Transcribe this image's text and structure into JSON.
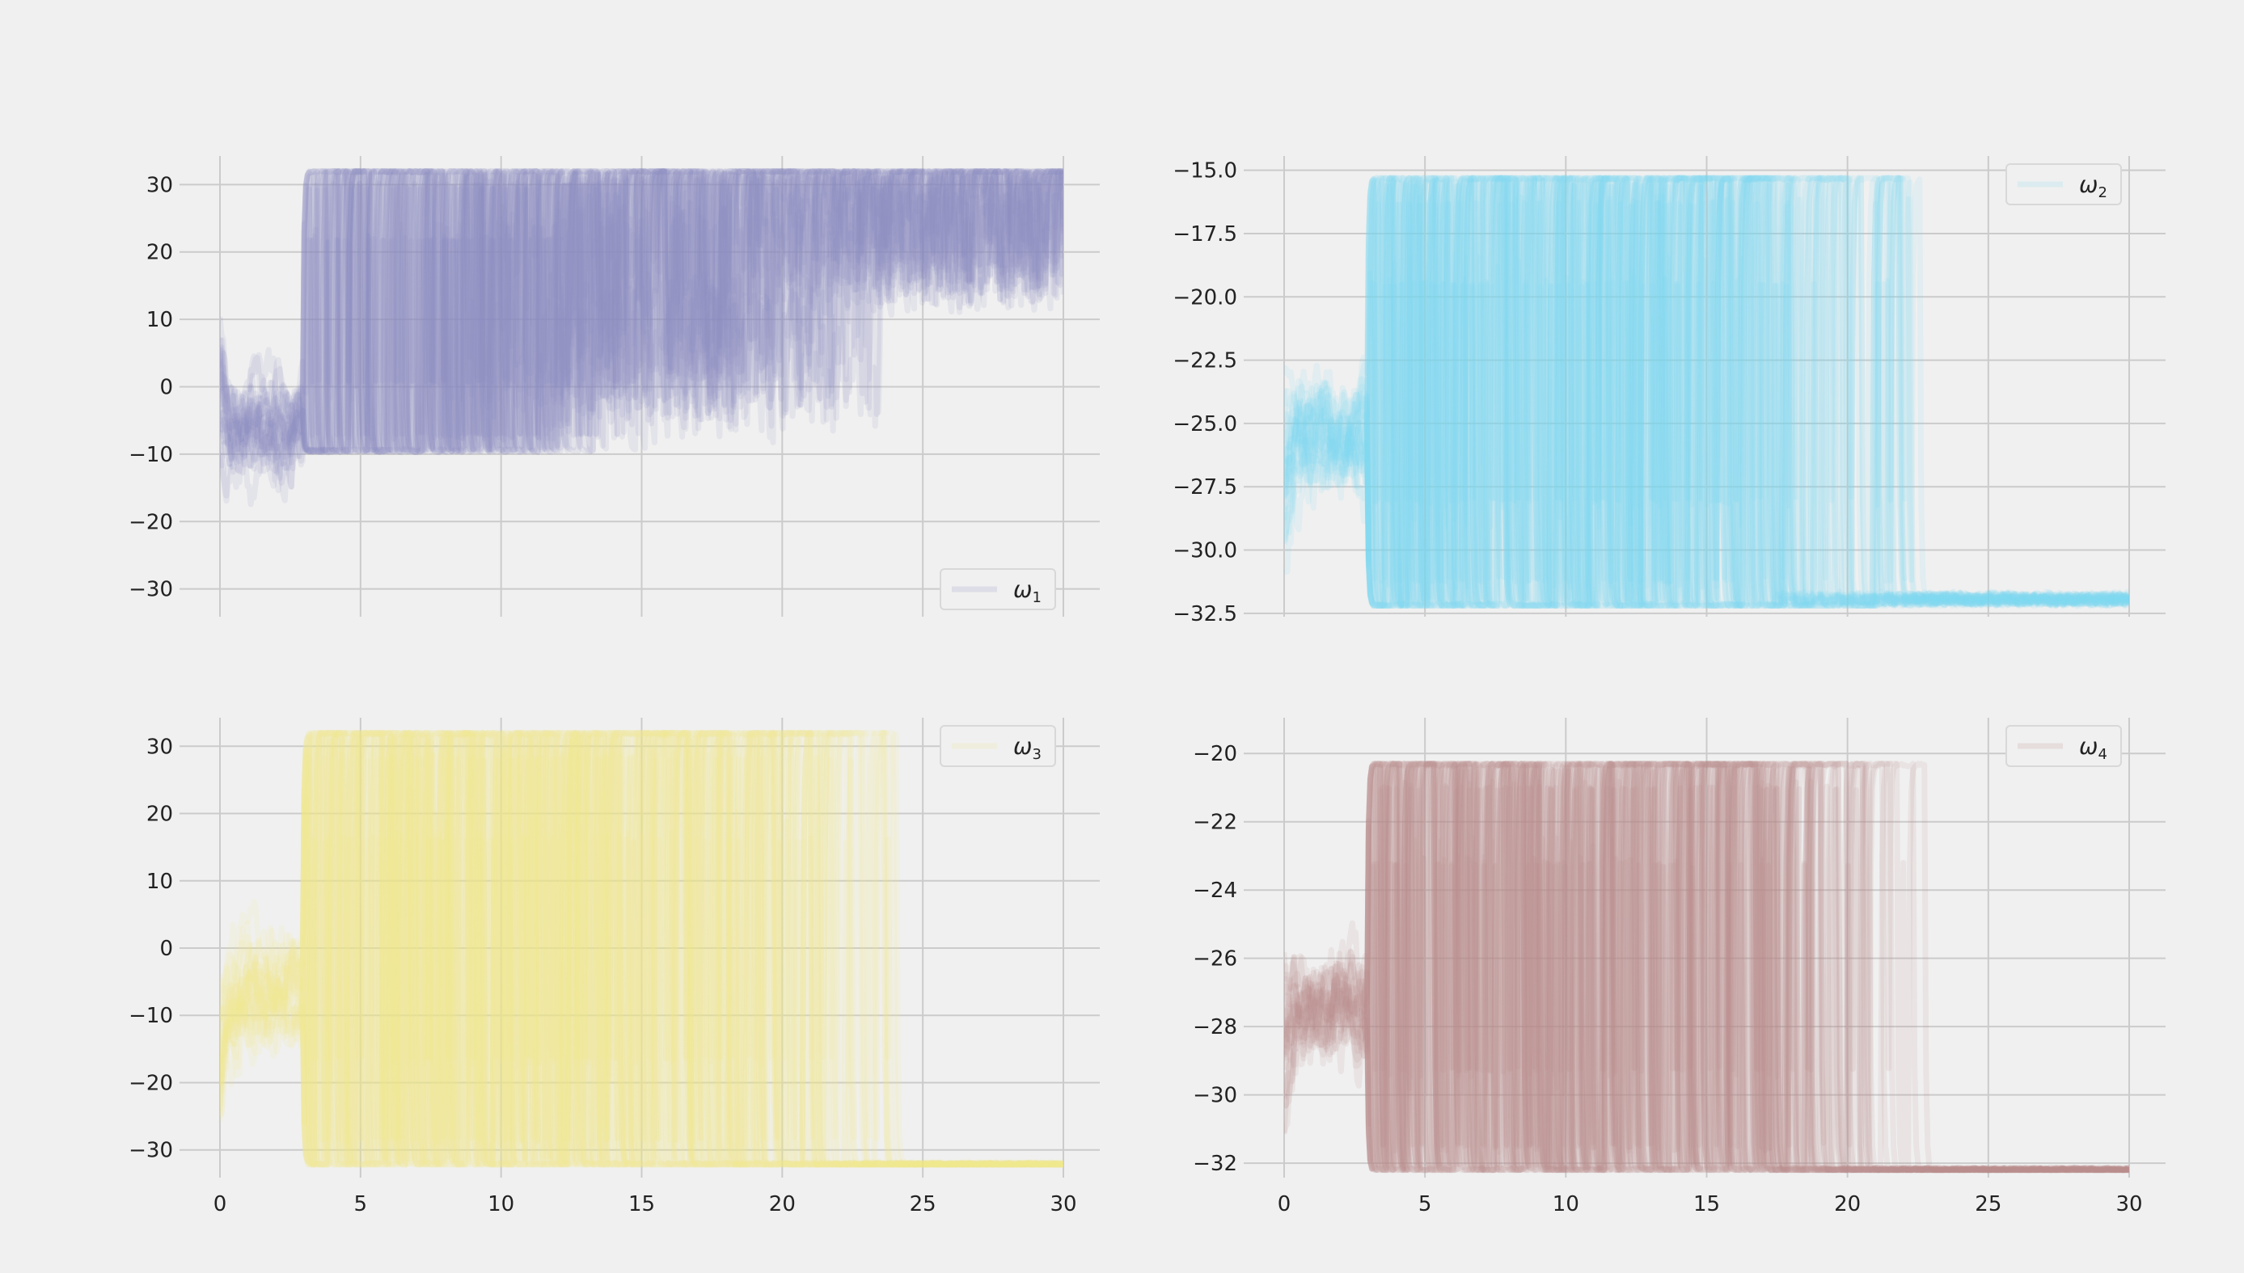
{
  "chart_data": [
    {
      "type": "line",
      "panel": "top-left",
      "legend": {
        "symbol": "ω",
        "subscript": "1",
        "placement": "lower-right"
      },
      "color": "#8a89c0",
      "xlim": [
        0,
        30
      ],
      "ylim": [
        -34,
        34
      ],
      "xticks": [
        0,
        5,
        10,
        15,
        20,
        25,
        30
      ],
      "yticks": [
        -30,
        -20,
        -10,
        0,
        10,
        20,
        30
      ],
      "ytick_labels": [
        "−30",
        "−20",
        "−10",
        "0",
        "10",
        "20",
        "30"
      ],
      "show_xtick_labels": false,
      "grid": true,
      "pattern": {
        "high": 32,
        "low": -9.5,
        "floor": -32,
        "end_low": 10,
        "end_high": 32,
        "switch_fade_start": 12,
        "switch_fade_end": 24,
        "mode": "rise"
      }
    },
    {
      "type": "line",
      "panel": "top-right",
      "legend": {
        "symbol": "ω",
        "subscript": "2",
        "placement": "upper-right"
      },
      "color": "#7fd8ee",
      "xlim": [
        0,
        30
      ],
      "ylim": [
        -32.6,
        -14.5
      ],
      "xticks": [
        0,
        5,
        10,
        15,
        20,
        25,
        30
      ],
      "yticks": [
        -32.5,
        -30.0,
        -27.5,
        -25.0,
        -22.5,
        -20.0,
        -17.5,
        -15.0
      ],
      "ytick_labels": [
        "−32.5",
        "−30.0",
        "−27.5",
        "−25.0",
        "−22.5",
        "−20.0",
        "−17.5",
        "−15.0"
      ],
      "show_xtick_labels": false,
      "grid": true,
      "pattern": {
        "high": -15.3,
        "low": -32.2,
        "floor": -32.2,
        "end_low": -32.2,
        "end_high": -30.5,
        "switch_fade_start": 15,
        "switch_fade_end": 23,
        "mode": "decay"
      }
    },
    {
      "type": "line",
      "panel": "bottom-left",
      "legend": {
        "symbol": "ω",
        "subscript": "3",
        "placement": "upper-right"
      },
      "color": "#f0e68c",
      "xlim": [
        0,
        30
      ],
      "ylim": [
        -34,
        34
      ],
      "xticks": [
        0,
        5,
        10,
        15,
        20,
        25,
        30
      ],
      "xtick_labels": [
        "0",
        "5",
        "10",
        "15",
        "20",
        "25",
        "30"
      ],
      "yticks": [
        -30,
        -20,
        -10,
        0,
        10,
        20,
        30
      ],
      "ytick_labels": [
        "−30",
        "−20",
        "−10",
        "0",
        "10",
        "20",
        "30"
      ],
      "show_xtick_labels": true,
      "grid": true,
      "pattern": {
        "high": 32,
        "low": -32.2,
        "floor": -32.2,
        "end_low": -32.2,
        "end_high": -32.2,
        "switch_fade_start": 15,
        "switch_fade_end": 24.5,
        "mode": "decay"
      }
    },
    {
      "type": "line",
      "panel": "bottom-right",
      "legend": {
        "symbol": "ω",
        "subscript": "4",
        "placement": "upper-right"
      },
      "color": "#bc8a8a",
      "xlim": [
        0,
        30
      ],
      "ylim": [
        -32.4,
        -19.0
      ],
      "xticks": [
        0,
        5,
        10,
        15,
        20,
        25,
        30
      ],
      "xtick_labels": [
        "0",
        "5",
        "10",
        "15",
        "20",
        "25",
        "30"
      ],
      "yticks": [
        -32,
        -30,
        -28,
        -26,
        -24,
        -22,
        -20
      ],
      "ytick_labels": [
        "−32",
        "−30",
        "−28",
        "−26",
        "−24",
        "−22",
        "−20"
      ],
      "show_xtick_labels": true,
      "grid": true,
      "pattern": {
        "high": -20.3,
        "low": -32.2,
        "floor": -32.2,
        "end_low": -32.2,
        "end_high": -32.2,
        "switch_fade_start": 14,
        "switch_fade_end": 23,
        "mode": "decay"
      }
    }
  ]
}
